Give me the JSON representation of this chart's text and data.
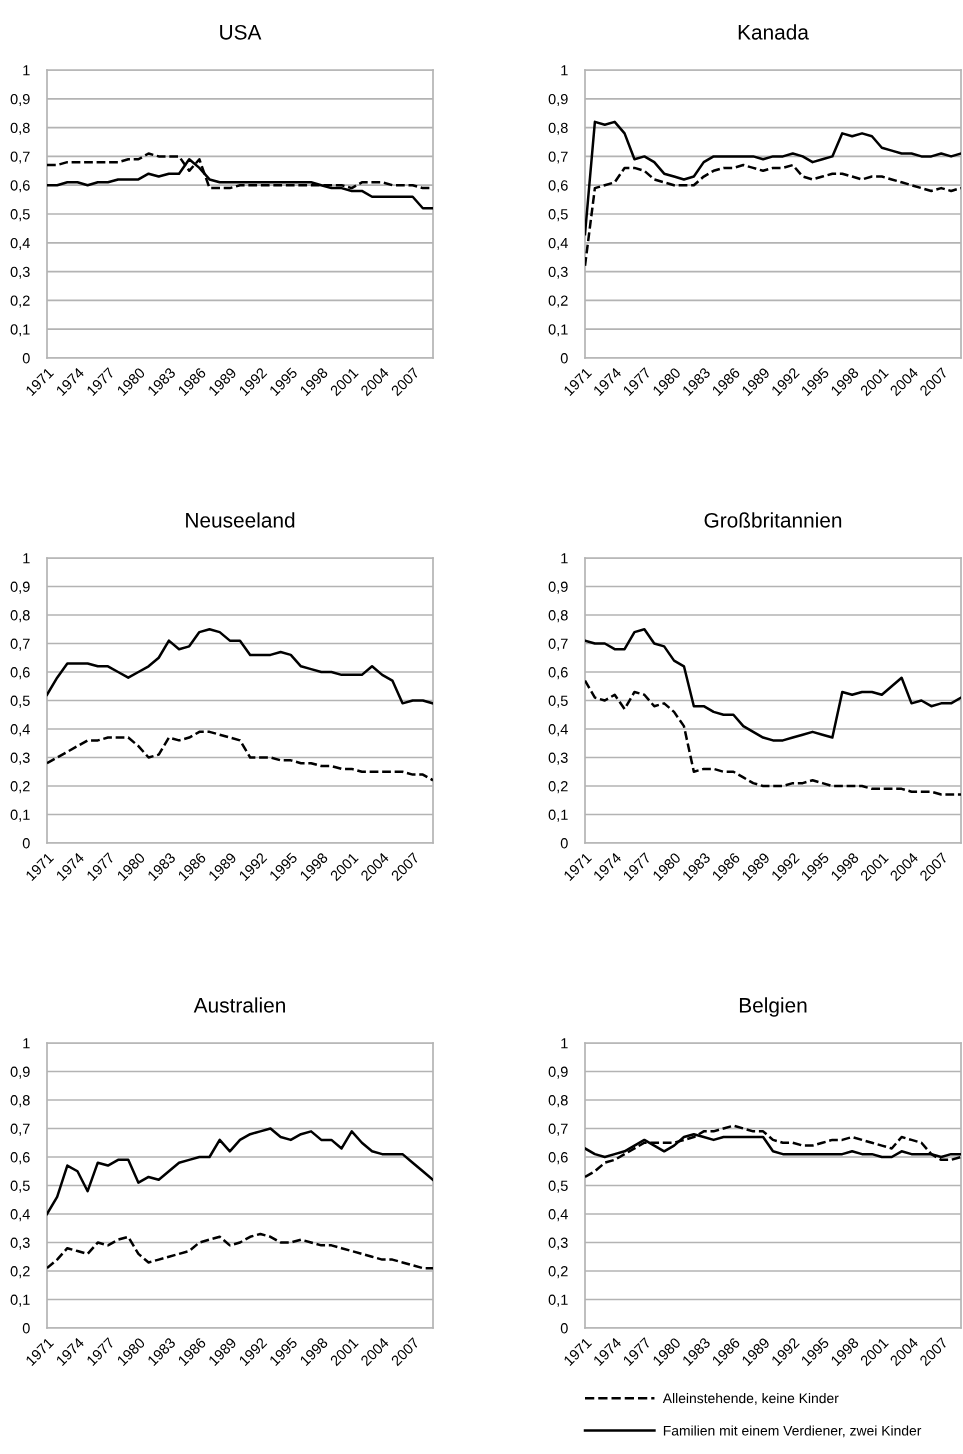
{
  "chart_data": [
    {
      "type": "line",
      "title": "USA",
      "categories": [
        "1971",
        null,
        null,
        "1974",
        null,
        null,
        "1977",
        null,
        null,
        "1980",
        null,
        null,
        "1983",
        null,
        null,
        "1986",
        null,
        null,
        "1989",
        null,
        null,
        "1992",
        null,
        null,
        "1995",
        null,
        null,
        "1998",
        null,
        null,
        "2001",
        null,
        null,
        "2004",
        null,
        null,
        "2007",
        null,
        null
      ],
      "ylim": [
        0,
        1
      ],
      "yticks": [
        0,
        {
          "value": 0.1,
          "label": "0,1"
        },
        {
          "value": 0.2,
          "label": "0,2"
        },
        {
          "value": 0.3,
          "label": "0,3"
        },
        {
          "value": 0.4,
          "label": "0,4"
        },
        {
          "value": 0.5,
          "label": "0,5"
        },
        {
          "value": 0.6,
          "label": "0,6"
        },
        {
          "value": 0.7,
          "label": "0,7"
        },
        {
          "value": 0.8,
          "label": "0,8"
        },
        {
          "value": 0.9,
          "label": "0,9"
        },
        1
      ],
      "grid": "y",
      "legend": "bottom",
      "series": [
        {
          "name": "Alleinstehende, keine Kinder",
          "color": "#000000",
          "line_style": "dashed",
          "values": [
            0.67,
            0.67,
            0.68,
            0.68,
            0.68,
            0.68,
            0.68,
            0.68,
            0.69,
            0.69,
            0.71,
            0.7,
            0.7,
            0.7,
            0.65,
            0.69,
            0.59,
            0.59,
            0.59,
            0.6,
            0.6,
            0.6,
            0.6,
            0.6,
            0.6,
            0.6,
            0.6,
            0.6,
            0.6,
            0.6,
            0.59,
            0.61,
            0.61,
            0.61,
            0.6,
            0.6,
            0.6,
            0.59,
            0.59
          ]
        },
        {
          "name": "Familien mit einem Verdiener, zwei Kinder",
          "color": "#000000",
          "line_style": "solid",
          "values": [
            0.6,
            0.6,
            0.61,
            0.61,
            0.6,
            0.61,
            0.61,
            0.62,
            0.62,
            0.62,
            0.64,
            0.63,
            0.64,
            0.64,
            0.69,
            0.66,
            0.62,
            0.61,
            0.61,
            0.61,
            0.61,
            0.61,
            0.61,
            0.61,
            0.61,
            0.61,
            0.61,
            0.6,
            0.59,
            0.59,
            0.58,
            0.58,
            0.56,
            0.56,
            0.56,
            0.56,
            0.56,
            0.52,
            0.52
          ]
        }
      ]
    },
    {
      "type": "line",
      "title": "Kanada",
      "categories": [
        "1971",
        null,
        null,
        "1974",
        null,
        null,
        "1977",
        null,
        null,
        "1980",
        null,
        null,
        "1983",
        null,
        null,
        "1986",
        null,
        null,
        "1989",
        null,
        null,
        "1992",
        null,
        null,
        "1995",
        null,
        null,
        "1998",
        null,
        null,
        "2001",
        null,
        null,
        "2004",
        null,
        null,
        "2007",
        null,
        null
      ],
      "ylim": [
        0,
        1
      ],
      "yticks": [
        0,
        {
          "value": 0.1,
          "label": "0,1"
        },
        {
          "value": 0.2,
          "label": "0,2"
        },
        {
          "value": 0.3,
          "label": "0,3"
        },
        {
          "value": 0.4,
          "label": "0,4"
        },
        {
          "value": 0.5,
          "label": "0,5"
        },
        {
          "value": 0.6,
          "label": "0,6"
        },
        {
          "value": 0.7,
          "label": "0,7"
        },
        {
          "value": 0.8,
          "label": "0,8"
        },
        {
          "value": 0.9,
          "label": "0,9"
        },
        1
      ],
      "grid": "y",
      "series": [
        {
          "color": "#000000",
          "line_style": "dashed",
          "values": [
            0.32,
            0.59,
            0.6,
            0.61,
            0.66,
            0.66,
            0.65,
            0.62,
            0.61,
            0.6,
            0.6,
            0.6,
            0.63,
            0.65,
            0.66,
            0.66,
            0.67,
            0.66,
            0.65,
            0.66,
            0.66,
            0.67,
            0.63,
            0.62,
            0.63,
            0.64,
            0.64,
            0.63,
            0.62,
            0.63,
            0.63,
            0.62,
            0.61,
            0.6,
            0.59,
            0.58,
            0.59,
            0.58,
            0.59
          ]
        },
        {
          "color": "#000000",
          "line_style": "solid",
          "values": [
            0.43,
            0.82,
            0.81,
            0.82,
            0.78,
            0.69,
            0.7,
            0.68,
            0.64,
            0.63,
            0.62,
            0.63,
            0.68,
            0.7,
            0.7,
            0.7,
            0.7,
            0.7,
            0.69,
            0.7,
            0.7,
            0.71,
            0.7,
            0.68,
            0.69,
            0.7,
            0.78,
            0.77,
            0.78,
            0.77,
            0.73,
            0.72,
            0.71,
            0.71,
            0.7,
            0.7,
            0.71,
            0.7,
            0.71
          ]
        }
      ]
    },
    {
      "type": "line",
      "title": "Neuseeland",
      "categories": [
        "1971",
        null,
        null,
        "1974",
        null,
        null,
        "1977",
        null,
        null,
        "1980",
        null,
        null,
        "1983",
        null,
        null,
        "1986",
        null,
        null,
        "1989",
        null,
        null,
        "1992",
        null,
        null,
        "1995",
        null,
        null,
        "1998",
        null,
        null,
        "2001",
        null,
        null,
        "2004",
        null,
        null,
        "2007",
        null,
        null
      ],
      "ylim": [
        0,
        1
      ],
      "yticks": [
        0,
        {
          "value": 0.1,
          "label": "0,1"
        },
        {
          "value": 0.2,
          "label": "0,2"
        },
        {
          "value": 0.3,
          "label": "0,3"
        },
        {
          "value": 0.4,
          "label": "0,4"
        },
        {
          "value": 0.5,
          "label": "0,5"
        },
        {
          "value": 0.6,
          "label": "0,6"
        },
        {
          "value": 0.7,
          "label": "0,7"
        },
        {
          "value": 0.8,
          "label": "0,8"
        },
        {
          "value": 0.9,
          "label": "0,9"
        },
        1
      ],
      "grid": "y",
      "series": [
        {
          "color": "#000000",
          "line_style": "dashed",
          "values": [
            0.28,
            0.3,
            0.32,
            0.34,
            0.36,
            0.36,
            0.37,
            0.37,
            0.37,
            0.34,
            0.3,
            0.31,
            0.37,
            0.36,
            0.37,
            0.39,
            0.39,
            0.38,
            0.37,
            0.36,
            0.3,
            0.3,
            0.3,
            0.29,
            0.29,
            0.28,
            0.28,
            0.27,
            0.27,
            0.26,
            0.26,
            0.25,
            0.25,
            0.25,
            0.25,
            0.25,
            0.24,
            0.24,
            0.22
          ]
        },
        {
          "color": "#000000",
          "line_style": "solid",
          "values": [
            0.52,
            0.58,
            0.63,
            0.63,
            0.63,
            0.62,
            0.62,
            0.6,
            0.58,
            0.6,
            0.62,
            0.65,
            0.71,
            0.68,
            0.69,
            0.74,
            0.75,
            0.74,
            0.71,
            0.71,
            0.66,
            0.66,
            0.66,
            0.67,
            0.66,
            0.62,
            0.61,
            0.6,
            0.6,
            0.59,
            0.59,
            0.59,
            0.62,
            0.59,
            0.57,
            0.49,
            0.5,
            0.5,
            0.49
          ]
        }
      ]
    },
    {
      "type": "line",
      "title": "Großbritannien",
      "categories": [
        "1971",
        null,
        null,
        "1974",
        null,
        null,
        "1977",
        null,
        null,
        "1980",
        null,
        null,
        "1983",
        null,
        null,
        "1986",
        null,
        null,
        "1989",
        null,
        null,
        "1992",
        null,
        null,
        "1995",
        null,
        null,
        "1998",
        null,
        null,
        "2001",
        null,
        null,
        "2004",
        null,
        null,
        "2007",
        null,
        null
      ],
      "ylim": [
        0,
        1
      ],
      "yticks": [
        0,
        {
          "value": 0.1,
          "label": "0,1"
        },
        {
          "value": 0.2,
          "label": "0,2"
        },
        {
          "value": 0.3,
          "label": "0,3"
        },
        {
          "value": 0.4,
          "label": "0,4"
        },
        {
          "value": 0.5,
          "label": "0,5"
        },
        {
          "value": 0.6,
          "label": "0,6"
        },
        {
          "value": 0.7,
          "label": "0,7"
        },
        {
          "value": 0.8,
          "label": "0,8"
        },
        {
          "value": 0.9,
          "label": "0,9"
        },
        1
      ],
      "grid": "y",
      "series": [
        {
          "color": "#000000",
          "line_style": "dashed",
          "values": [
            0.57,
            0.51,
            0.5,
            0.52,
            0.47,
            0.53,
            0.52,
            0.48,
            0.49,
            0.46,
            0.41,
            0.25,
            0.26,
            0.26,
            0.25,
            0.25,
            0.23,
            0.21,
            0.2,
            0.2,
            0.2,
            0.21,
            0.21,
            0.22,
            0.21,
            0.2,
            0.2,
            0.2,
            0.2,
            0.19,
            0.19,
            0.19,
            0.19,
            0.18,
            0.18,
            0.18,
            0.17,
            0.17,
            0.17
          ]
        },
        {
          "color": "#000000",
          "line_style": "solid",
          "values": [
            0.71,
            0.7,
            0.7,
            0.68,
            0.68,
            0.74,
            0.75,
            0.7,
            0.69,
            0.64,
            0.62,
            0.48,
            0.48,
            0.46,
            0.45,
            0.45,
            0.41,
            0.39,
            0.37,
            0.36,
            0.36,
            0.37,
            0.38,
            0.39,
            0.38,
            0.37,
            0.53,
            0.52,
            0.53,
            0.53,
            0.52,
            0.55,
            0.58,
            0.49,
            0.5,
            0.48,
            0.49,
            0.49,
            0.51
          ]
        }
      ]
    },
    {
      "type": "line",
      "title": "Australien",
      "categories": [
        "1971",
        null,
        null,
        "1974",
        null,
        null,
        "1977",
        null,
        null,
        "1980",
        null,
        null,
        "1983",
        null,
        null,
        "1986",
        null,
        null,
        "1989",
        null,
        null,
        "1992",
        null,
        null,
        "1995",
        null,
        null,
        "1998",
        null,
        null,
        "2001",
        null,
        null,
        "2004",
        null,
        null,
        "2007",
        null,
        null
      ],
      "ylim": [
        0,
        1
      ],
      "yticks": [
        0,
        {
          "value": 0.1,
          "label": "0,1"
        },
        {
          "value": 0.2,
          "label": "0,2"
        },
        {
          "value": 0.3,
          "label": "0,3"
        },
        {
          "value": 0.4,
          "label": "0,4"
        },
        {
          "value": 0.5,
          "label": "0,5"
        },
        {
          "value": 0.6,
          "label": "0,6"
        },
        {
          "value": 0.7,
          "label": "0,7"
        },
        {
          "value": 0.8,
          "label": "0,8"
        },
        {
          "value": 0.9,
          "label": "0,9"
        },
        1
      ],
      "grid": "y",
      "series": [
        {
          "color": "#000000",
          "line_style": "dashed",
          "values": [
            0.21,
            0.24,
            0.28,
            0.27,
            0.26,
            0.3,
            0.29,
            0.31,
            0.32,
            0.26,
            0.23,
            0.24,
            0.25,
            0.26,
            0.27,
            0.3,
            0.31,
            0.32,
            0.29,
            0.3,
            0.32,
            0.33,
            0.32,
            0.3,
            0.3,
            0.31,
            0.3,
            0.29,
            0.29,
            0.28,
            0.27,
            0.26,
            0.25,
            0.24,
            0.24,
            0.23,
            0.22,
            0.21,
            0.21
          ]
        },
        {
          "color": "#000000",
          "line_style": "solid",
          "values": [
            0.4,
            0.46,
            0.57,
            0.55,
            0.48,
            0.58,
            0.57,
            0.59,
            0.59,
            0.51,
            0.53,
            0.52,
            0.55,
            0.58,
            0.59,
            0.6,
            0.6,
            0.66,
            0.62,
            0.66,
            0.68,
            0.69,
            0.7,
            0.67,
            0.66,
            0.68,
            0.69,
            0.66,
            0.66,
            0.63,
            0.69,
            0.65,
            0.62,
            0.61,
            0.61,
            0.61,
            0.58,
            0.55,
            0.52
          ]
        }
      ]
    },
    {
      "type": "line",
      "title": "Belgien",
      "categories": [
        "1971",
        null,
        null,
        "1974",
        null,
        null,
        "1977",
        null,
        null,
        "1980",
        null,
        null,
        "1983",
        null,
        null,
        "1986",
        null,
        null,
        "1989",
        null,
        null,
        "1992",
        null,
        null,
        "1995",
        null,
        null,
        "1998",
        null,
        null,
        "2001",
        null,
        null,
        "2004",
        null,
        null,
        "2007",
        null,
        null
      ],
      "ylim": [
        0,
        1
      ],
      "yticks": [
        0,
        {
          "value": 0.1,
          "label": "0,1"
        },
        {
          "value": 0.2,
          "label": "0,2"
        },
        {
          "value": 0.3,
          "label": "0,3"
        },
        {
          "value": 0.4,
          "label": "0,4"
        },
        {
          "value": 0.5,
          "label": "0,5"
        },
        {
          "value": 0.6,
          "label": "0,6"
        },
        {
          "value": 0.7,
          "label": "0,7"
        },
        {
          "value": 0.8,
          "label": "0,8"
        },
        {
          "value": 0.9,
          "label": "0,9"
        },
        1
      ],
      "grid": "y",
      "series": [
        {
          "color": "#000000",
          "line_style": "dashed",
          "values": [
            0.53,
            0.55,
            0.58,
            0.59,
            0.61,
            0.63,
            0.65,
            0.65,
            0.65,
            0.65,
            0.66,
            0.67,
            0.69,
            0.69,
            0.7,
            0.71,
            0.7,
            0.69,
            0.69,
            0.66,
            0.65,
            0.65,
            0.64,
            0.64,
            0.65,
            0.66,
            0.66,
            0.67,
            0.66,
            0.65,
            0.64,
            0.63,
            0.67,
            0.66,
            0.65,
            0.61,
            0.59,
            0.59,
            0.6
          ]
        },
        {
          "color": "#000000",
          "line_style": "solid",
          "values": [
            0.63,
            0.61,
            0.6,
            0.61,
            0.62,
            0.64,
            0.66,
            0.64,
            0.62,
            0.64,
            0.67,
            0.68,
            0.67,
            0.66,
            0.67,
            0.67,
            0.67,
            0.67,
            0.67,
            0.62,
            0.61,
            0.61,
            0.61,
            0.61,
            0.61,
            0.61,
            0.61,
            0.62,
            0.61,
            0.61,
            0.6,
            0.6,
            0.62,
            0.61,
            0.61,
            0.61,
            0.6,
            0.61,
            0.61
          ]
        }
      ]
    }
  ]
}
